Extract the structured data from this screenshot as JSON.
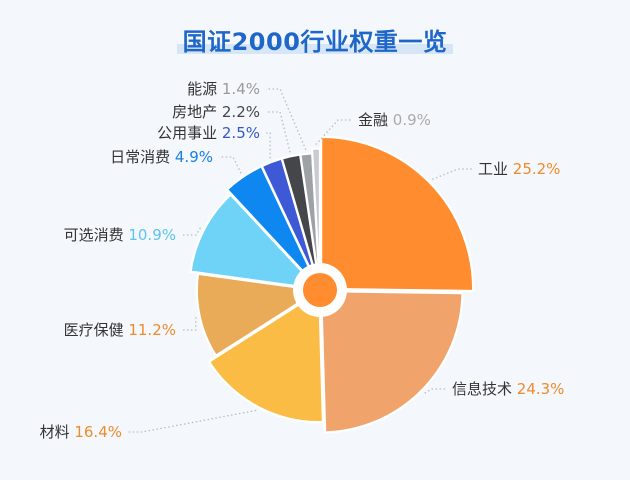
{
  "chart_data": {
    "type": "pie",
    "title": "国证2000行业权重一览",
    "unit": "%",
    "slices": [
      {
        "name": "工业",
        "value": 25.2,
        "value_text": "25.2%",
        "color": "#ff8c2e",
        "text_color": "#f08a2a",
        "radius": 1.0
      },
      {
        "name": "信息技术",
        "value": 24.3,
        "value_text": "24.3%",
        "color": "#f0a46c",
        "text_color": "#f08a2a",
        "radius": 0.93
      },
      {
        "name": "材料",
        "value": 16.4,
        "value_text": "16.4%",
        "color": "#fbbc45",
        "text_color": "#f08a2a",
        "radius": 0.86
      },
      {
        "name": "医疗保健",
        "value": 11.2,
        "value_text": "11.2%",
        "color": "#e9ab58",
        "text_color": "#f08a2a",
        "radius": 0.8
      },
      {
        "name": "可选消费",
        "value": 10.9,
        "value_text": "10.9%",
        "color": "#6fd3f8",
        "text_color": "#5cc4ee",
        "radius": 0.85
      },
      {
        "name": "日常消费",
        "value": 4.9,
        "value_text": "4.9%",
        "color": "#0e87f0",
        "text_color": "#1a7fe0",
        "radius": 0.89
      },
      {
        "name": "公用事业",
        "value": 2.5,
        "value_text": "2.5%",
        "color": "#3d59d6",
        "text_color": "#3558c8",
        "radius": 0.89
      },
      {
        "name": "房地产",
        "value": 2.2,
        "value_text": "2.2%",
        "color": "#45464a",
        "text_color": "#45464a",
        "radius": 0.89
      },
      {
        "name": "能源",
        "value": 1.4,
        "value_text": "1.4%",
        "color": "#9ea1a6",
        "text_color": "#9a9a9a",
        "radius": 0.89
      },
      {
        "name": "金融",
        "value": 0.9,
        "value_text": "0.9%",
        "color": "#c9cbd0",
        "text_color": "#aaaaaa",
        "radius": 0.92
      }
    ]
  }
}
